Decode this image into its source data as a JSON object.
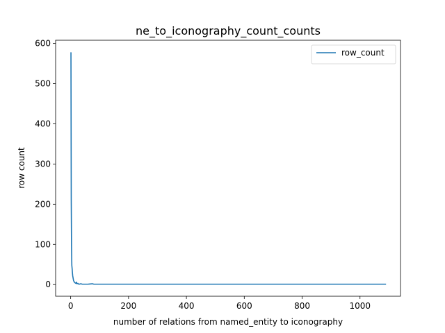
{
  "chart_data": {
    "type": "line",
    "title": "ne_to_iconography_count_counts",
    "xlabel": "number of relations from named_entity to iconography",
    "ylabel": "row count",
    "xlim": [
      -52,
      1140
    ],
    "ylim": [
      -29,
      608
    ],
    "x_ticks": [
      0,
      200,
      400,
      600,
      800,
      1000
    ],
    "y_ticks": [
      0,
      100,
      200,
      300,
      400,
      500,
      600
    ],
    "grid": false,
    "legend_position": "top-right",
    "series": [
      {
        "name": "row_count",
        "color": "#1f77b4",
        "points": [
          [
            1,
            578
          ],
          [
            2,
            210
          ],
          [
            3,
            95
          ],
          [
            4,
            48
          ],
          [
            5,
            40
          ],
          [
            6,
            30
          ],
          [
            7,
            22
          ],
          [
            8,
            18
          ],
          [
            9,
            14
          ],
          [
            10,
            10
          ],
          [
            12,
            7
          ],
          [
            14,
            5
          ],
          [
            16,
            4
          ],
          [
            18,
            3
          ],
          [
            20,
            6
          ],
          [
            22,
            2
          ],
          [
            25,
            3
          ],
          [
            28,
            1
          ],
          [
            30,
            1
          ],
          [
            35,
            2
          ],
          [
            40,
            1
          ],
          [
            50,
            1
          ],
          [
            60,
            1
          ],
          [
            75,
            2
          ],
          [
            80,
            1
          ],
          [
            100,
            1
          ],
          [
            200,
            1
          ],
          [
            400,
            1
          ],
          [
            600,
            1
          ],
          [
            800,
            1
          ],
          [
            1000,
            1
          ],
          [
            1090,
            1
          ]
        ]
      }
    ]
  }
}
